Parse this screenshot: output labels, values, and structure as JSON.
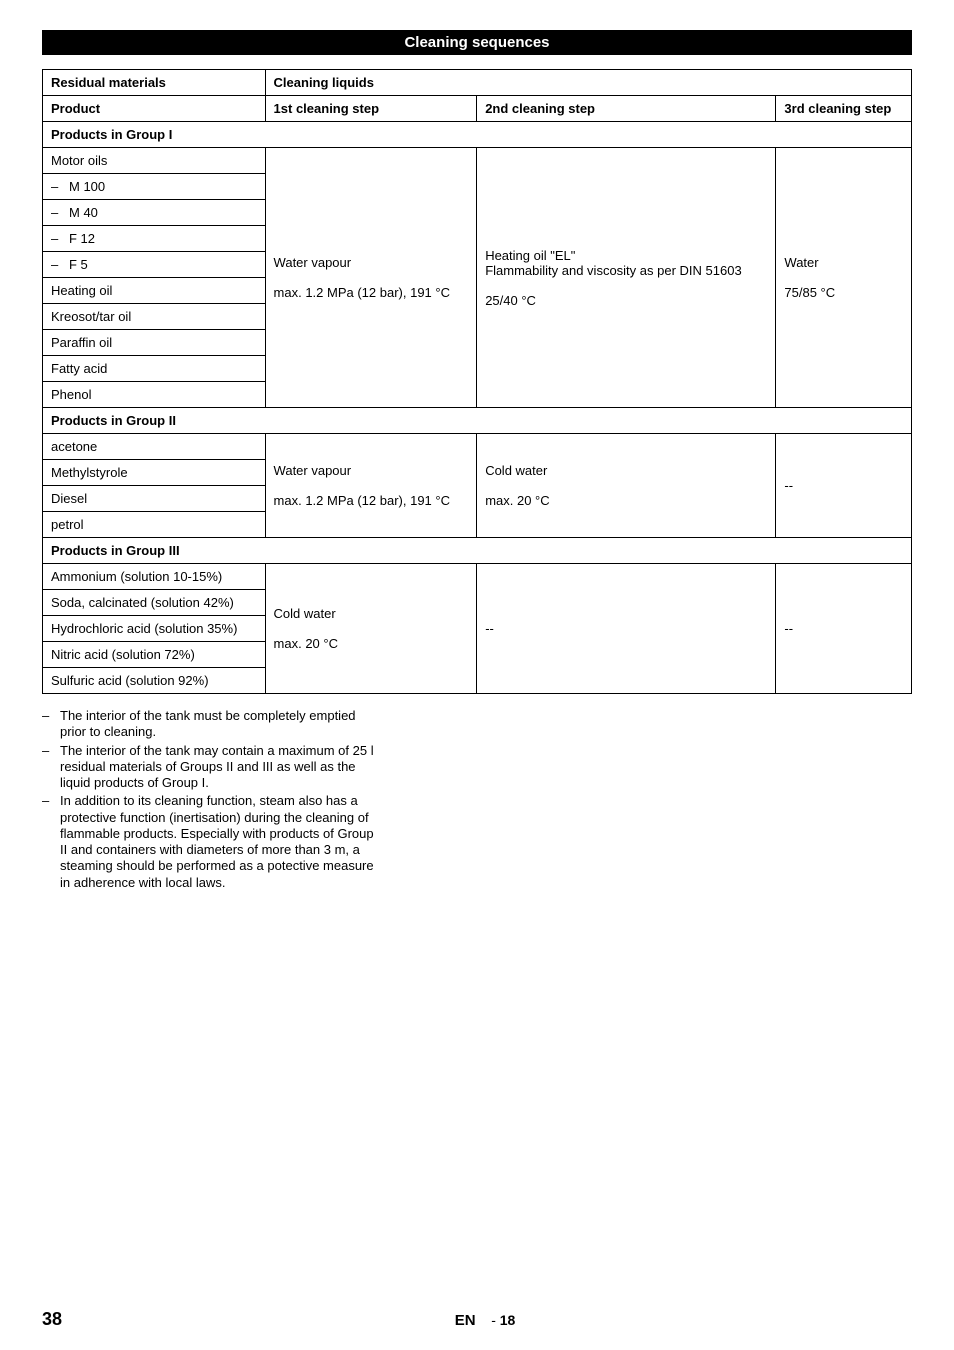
{
  "section_title": "Cleaning sequences",
  "table": {
    "header": {
      "residual": "Residual materials",
      "liquids": "Cleaning liquids",
      "product": "Product",
      "step1": "1st cleaning step",
      "step2": "2nd cleaning step",
      "step3": "3rd cleaning step"
    },
    "group1": {
      "title": "Products in Group I",
      "products": [
        "Motor oils",
        "M 100",
        "M 40",
        "F 12",
        "F 5",
        "Heating oil",
        "Kreosot/tar oil",
        "Paraffin oil",
        "Fatty acid",
        "Phenol"
      ],
      "step1": {
        "line1": "Water vapour",
        "line2": "max. 1.2 MPa (12 bar), 191 °C"
      },
      "step2": {
        "line1": "Heating oil \"EL\"",
        "line2": "Flammability and viscosity as per DIN 51603",
        "line3": "25/40 °C"
      },
      "step3": {
        "line1": "Water",
        "line2": "75/85 °C"
      }
    },
    "group2": {
      "title": "Products in Group II",
      "products": [
        "acetone",
        "Methylstyrole",
        "Diesel",
        "petrol"
      ],
      "step1": {
        "line1": "Water vapour",
        "line2": "max. 1.2 MPa (12 bar), 191 °C"
      },
      "step2": {
        "line1": "Cold water",
        "line2": "max. 20 °C"
      },
      "step3": "--"
    },
    "group3": {
      "title": "Products in Group III",
      "products": [
        "Ammonium (solution 10-15%)",
        "Soda, calcinated (solution 42%)",
        "Hydrochloric acid (solution 35%)",
        "Nitric acid (solution 72%)",
        "Sulfuric acid (solution 92%)"
      ],
      "step1": {
        "line1": "Cold water",
        "line2": "max. 20 °C"
      },
      "step2": "--",
      "step3": "--"
    }
  },
  "notes": [
    "The interior of the tank must be completely emptied prior to cleaning.",
    "The interior of the tank may contain a maximum of 25 l residual materials of Groups II and III as well as the liquid products of Group I.",
    "In addition to its cleaning function, steam also has a protective function (inertisation) during the cleaning of flammable products. Especially with products of Group II and containers with diameters of more than 3 m, a steaming should be performed as a potective measure in adherence with local laws."
  ],
  "footer": {
    "page_left": "38",
    "lang": "EN",
    "sep": "-",
    "page_sub": "18"
  }
}
